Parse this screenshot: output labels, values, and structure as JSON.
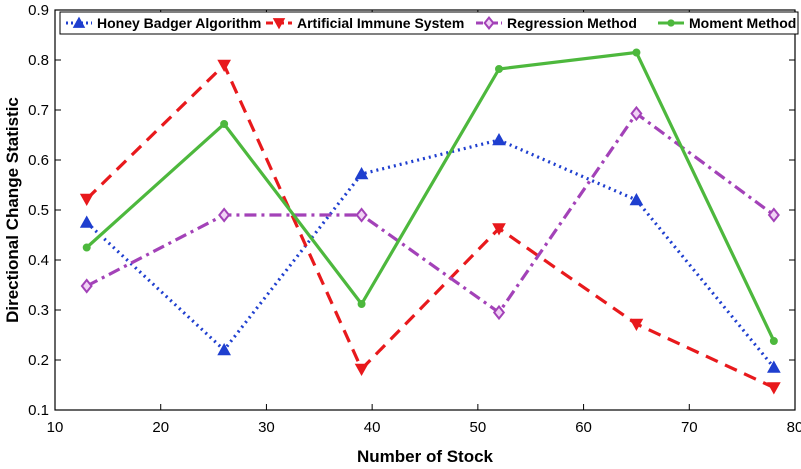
{
  "chart_data": {
    "type": "line",
    "title": "",
    "xlabel": "Number of Stock",
    "ylabel": "Directional Change Statistic",
    "xlim": [
      10,
      80
    ],
    "ylim": [
      0.1,
      0.9
    ],
    "xticks": [
      "10",
      "20",
      "30",
      "40",
      "50",
      "60",
      "70",
      "80"
    ],
    "yticks": [
      "0.1",
      "0.2",
      "0.3",
      "0.4",
      "0.5",
      "0.6",
      "0.7",
      "0.8",
      "0.9"
    ],
    "x": [
      13,
      26,
      39,
      52,
      65,
      78
    ],
    "grid": false,
    "legend_position": "top",
    "series": [
      {
        "name": "Honey Badger Algorithm",
        "values": [
          0.475,
          0.22,
          0.572,
          0.64,
          0.52,
          0.185
        ],
        "color": "#1f3fcf",
        "dash": "dotted",
        "marker": "triangle-up"
      },
      {
        "name": "Artificial Immune System",
        "values": [
          0.522,
          0.79,
          0.182,
          0.463,
          0.272,
          0.145
        ],
        "color": "#e8191c",
        "dash": "dashed",
        "marker": "triangle-down"
      },
      {
        "name": "Regression Method",
        "values": [
          0.348,
          0.49,
          0.49,
          0.295,
          0.693,
          0.49
        ],
        "color": "#a342b8",
        "dash": "dashdot",
        "marker": "diamond"
      },
      {
        "name": "Moment Method",
        "values": [
          0.425,
          0.672,
          0.312,
          0.782,
          0.815,
          0.238
        ],
        "color": "#4db83d",
        "dash": "solid",
        "marker": "circle"
      }
    ]
  }
}
